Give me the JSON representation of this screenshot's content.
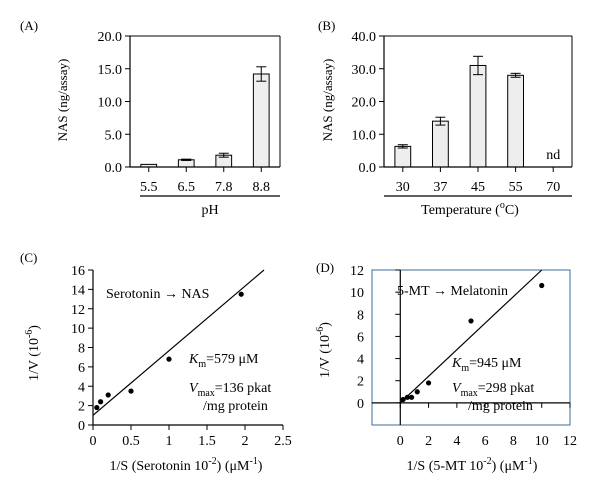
{
  "chart_data": [
    {
      "panel": "(A)",
      "type": "bar",
      "categories": [
        "5.5",
        "6.5",
        "7.8",
        "8.8"
      ],
      "values": [
        0.4,
        1.1,
        1.8,
        14.2
      ],
      "errors": [
        0.0,
        0.1,
        0.3,
        1.1
      ],
      "bar_labels": [
        "",
        "",
        "",
        ""
      ],
      "xlabel": "pH",
      "ylabel": "NAS (ng/assay)",
      "ylim": [
        0,
        20
      ],
      "yticks": [
        "0.0",
        "5.0",
        "10.0",
        "15.0",
        "20.0"
      ],
      "bar_color": "#eeeeee"
    },
    {
      "panel": "(B)",
      "type": "bar",
      "categories": [
        "30",
        "37",
        "45",
        "55",
        "70"
      ],
      "values": [
        6.3,
        14.0,
        31.0,
        28.0,
        0
      ],
      "errors": [
        0.5,
        1.2,
        2.8,
        0.6,
        0
      ],
      "bar_labels": [
        "",
        "",
        "",
        "",
        "nd"
      ],
      "xlabel": "Temperature (",
      "xlabel_sup": "o",
      "xlabel_end": "C)",
      "ylabel": "NAS (ng/assay)",
      "ylim": [
        0,
        40
      ],
      "yticks": [
        "0.0",
        "10.0",
        "20.0",
        "30.0",
        "40.0"
      ],
      "bar_color": "#eeeeee"
    },
    {
      "panel": "(C)",
      "type": "scatter",
      "points": [
        {
          "x": 0.05,
          "y": 1.8
        },
        {
          "x": 0.1,
          "y": 2.4
        },
        {
          "x": 0.2,
          "y": 3.1
        },
        {
          "x": 0.5,
          "y": 3.5
        },
        {
          "x": 1.0,
          "y": 6.8
        },
        {
          "x": 1.95,
          "y": 13.5
        }
      ],
      "fit_line": [
        [
          0.0,
          1.0
        ],
        [
          2.25,
          16.0
        ]
      ],
      "xlim": [
        0,
        2.5
      ],
      "ylim": [
        0,
        16
      ],
      "xticks": [
        "0",
        "0.5",
        "1",
        "1.5",
        "2",
        "2.5"
      ],
      "yticks": [
        "0",
        "2",
        "4",
        "6",
        "8",
        "10",
        "12",
        "14",
        "16"
      ],
      "xlabel_main": "1/S (Serotonin 10",
      "xlabel_exp": "-2",
      "xlabel_unit": ") (μM",
      "xlabel_unit_exp": "-1",
      "xlabel_close": ")",
      "ylabel_main": "1/V (10",
      "ylabel_exp": "-6",
      "ylabel_close": ")",
      "reaction": "Serotonin → NAS",
      "km_symbol": "K",
      "km_sub": "m",
      "km_value": "=579 μM",
      "vmax_symbol": "V",
      "vmax_sub": "max",
      "vmax_value": "=136 pkat",
      "vmax_unit": "/mg protein"
    },
    {
      "panel": "(D)",
      "type": "scatter",
      "points": [
        {
          "x": 0.2,
          "y": 0.3
        },
        {
          "x": 0.5,
          "y": 0.5
        },
        {
          "x": 0.8,
          "y": 0.5
        },
        {
          "x": 1.2,
          "y": 1.0
        },
        {
          "x": 2.0,
          "y": 1.8
        },
        {
          "x": 5.0,
          "y": 7.4
        },
        {
          "x": 10.0,
          "y": 10.6
        }
      ],
      "fit_line": [
        [
          0.0,
          0.0
        ],
        [
          10.0,
          12.0
        ]
      ],
      "xlim": [
        -2,
        12
      ],
      "ylim": [
        -2,
        12
      ],
      "xticks": [
        "0",
        "2",
        "4",
        "6",
        "8",
        "10",
        "12"
      ],
      "yticks": [
        "0",
        "2",
        "4",
        "6",
        "8",
        "10",
        "12"
      ],
      "xlabel_main": "1/S (5-MT 10",
      "xlabel_exp": "-2",
      "xlabel_unit": ") (μM",
      "xlabel_unit_exp": "-1",
      "xlabel_close": ")",
      "ylabel_main": "1/V (10",
      "ylabel_exp": "-6",
      "ylabel_close": ")",
      "reaction": "5-MT → Melatonin",
      "km_symbol": "K",
      "km_sub": "m",
      "km_value": "=945 μM",
      "vmax_symbol": "V",
      "vmax_sub": "max",
      "vmax_value": "=298 pkat",
      "vmax_unit": "/mg protein",
      "frame_color": "#3a6e9b"
    }
  ]
}
